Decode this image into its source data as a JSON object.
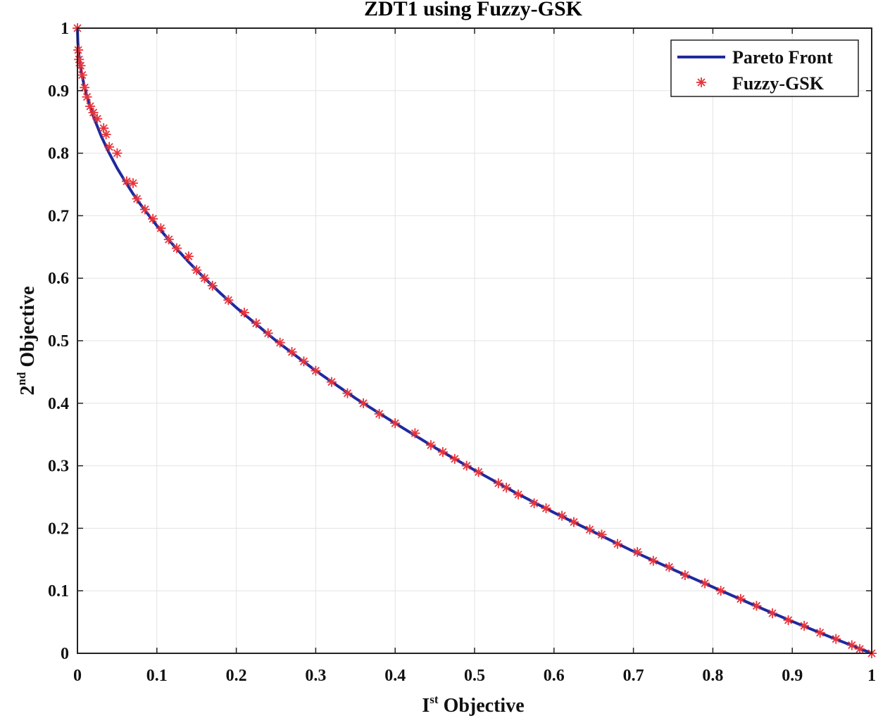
{
  "chart_data": {
    "type": "line",
    "title": "ZDT1 using Fuzzy-GSK",
    "xlabel": {
      "main": "I",
      "sup": "st",
      "rest": " Objective"
    },
    "ylabel": {
      "main": "2",
      "sup": "nd",
      "rest": " Objective"
    },
    "xlim": [
      0,
      1
    ],
    "ylim": [
      0,
      1
    ],
    "xticks": [
      "0",
      "0.1",
      "0.2",
      "0.3",
      "0.4",
      "0.5",
      "0.6",
      "0.7",
      "0.8",
      "0.9",
      "1"
    ],
    "yticks": [
      "0",
      "0.1",
      "0.2",
      "0.3",
      "0.4",
      "0.5",
      "0.6",
      "0.7",
      "0.8",
      "0.9",
      "1"
    ],
    "grid": true,
    "legend_position": "top-right",
    "series": [
      {
        "name": "Pareto Front",
        "kind": "line",
        "color": "#1f2a9e",
        "formula": "y = 1 - sqrt(x)",
        "x": [
          0,
          0.0005,
          0.001,
          0.002,
          0.004,
          0.006,
          0.008,
          0.01,
          0.015,
          0.02,
          0.03,
          0.04,
          0.05,
          0.06,
          0.07,
          0.08,
          0.1,
          0.12,
          0.14,
          0.16,
          0.18,
          0.2,
          0.25,
          0.3,
          0.35,
          0.4,
          0.45,
          0.5,
          0.55,
          0.6,
          0.65,
          0.7,
          0.75,
          0.8,
          0.85,
          0.9,
          0.95,
          1
        ],
        "y": [
          1,
          0.978,
          0.968,
          0.955,
          0.937,
          0.923,
          0.911,
          0.9,
          0.878,
          0.859,
          0.827,
          0.8,
          0.776,
          0.755,
          0.735,
          0.717,
          0.684,
          0.654,
          0.626,
          0.6,
          0.576,
          0.553,
          0.5,
          0.452,
          0.408,
          0.368,
          0.329,
          0.293,
          0.258,
          0.225,
          0.194,
          0.163,
          0.134,
          0.106,
          0.078,
          0.051,
          0.025,
          0
        ]
      },
      {
        "name": "Fuzzy-GSK",
        "kind": "marker",
        "marker": "asterisk",
        "color": "#e8333a",
        "x": [
          0.0,
          0.001,
          0.002,
          0.004,
          0.006,
          0.009,
          0.012,
          0.016,
          0.02,
          0.025,
          0.033,
          0.036,
          0.04,
          0.05,
          0.062,
          0.07,
          0.075,
          0.085,
          0.095,
          0.105,
          0.115,
          0.125,
          0.14,
          0.15,
          0.16,
          0.17,
          0.19,
          0.21,
          0.225,
          0.24,
          0.255,
          0.27,
          0.285,
          0.3,
          0.32,
          0.34,
          0.36,
          0.38,
          0.4,
          0.425,
          0.445,
          0.46,
          0.475,
          0.49,
          0.505,
          0.53,
          0.54,
          0.555,
          0.575,
          0.59,
          0.61,
          0.625,
          0.645,
          0.66,
          0.68,
          0.705,
          0.725,
          0.745,
          0.765,
          0.79,
          0.81,
          0.835,
          0.855,
          0.875,
          0.895,
          0.915,
          0.935,
          0.955,
          0.975,
          0.985,
          1.0
        ],
        "y": [
          1.0,
          0.965,
          0.95,
          0.94,
          0.925,
          0.905,
          0.89,
          0.875,
          0.865,
          0.855,
          0.84,
          0.83,
          0.81,
          0.8,
          0.755,
          0.752,
          0.727,
          0.71,
          0.695,
          0.68,
          0.662,
          0.648,
          0.635,
          0.613,
          0.6,
          0.588,
          0.565,
          0.545,
          0.528,
          0.512,
          0.497,
          0.482,
          0.467,
          0.452,
          0.434,
          0.416,
          0.4,
          0.383,
          0.368,
          0.352,
          0.333,
          0.322,
          0.311,
          0.3,
          0.29,
          0.272,
          0.265,
          0.254,
          0.24,
          0.232,
          0.22,
          0.21,
          0.198,
          0.19,
          0.175,
          0.162,
          0.148,
          0.138,
          0.125,
          0.112,
          0.1,
          0.087,
          0.076,
          0.064,
          0.053,
          0.044,
          0.033,
          0.023,
          0.013,
          0.007,
          0.0
        ]
      }
    ]
  }
}
